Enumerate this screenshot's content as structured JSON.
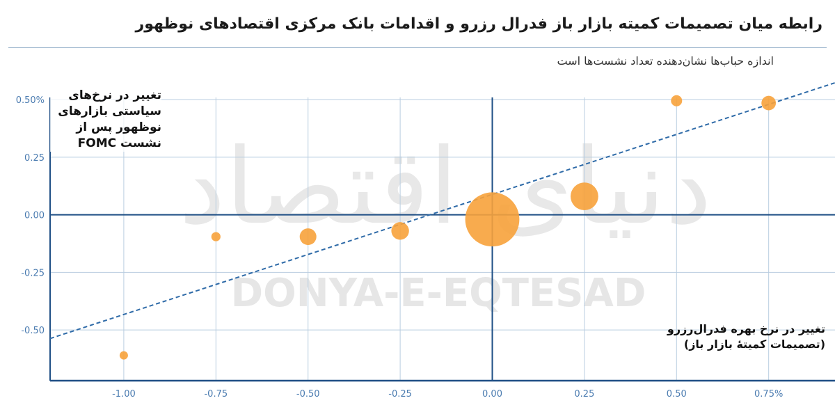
{
  "title": "رابطه میان تصمیمات کمیته بازار باز فدرال رزرو و اقدامات بانک مرکزی اقتصادهای نوظهور",
  "subtitle": "اندازه حباب‌ها نشان‌دهنده تعداد نشست‌ها است",
  "watermark": {
    "fa": "دنیای اقتصاد",
    "en": "DONYA-E-EQTESAD"
  },
  "colors": {
    "bubble": "#f7a23b",
    "trend": "#2f6ba8",
    "axis": "#1f4f85",
    "grid": "#b9cde0"
  },
  "chart_data": {
    "type": "scatter",
    "subtype": "bubble",
    "ylabel": "تغییر در نرخ‌های سیاستی بازارهای نوظهور پس از نشست FOMC",
    "xlabel_line1": "تغییر در نرخ بهره فدرال‌رزرو",
    "xlabel_line2": "(تصمیمات کمیتهٔ بازار باز)",
    "xlim": [
      -1.2,
      0.93
    ],
    "ylim": [
      -0.72,
      0.6
    ],
    "x_ticks": [
      -1.0,
      -0.75,
      -0.5,
      -0.25,
      0.0,
      0.25,
      0.5,
      0.75
    ],
    "x_tick_labels": [
      "-1.00",
      "-0.75",
      "-0.50",
      "-0.25",
      "0.00",
      "0.25",
      "0.50",
      "0.75%"
    ],
    "y_ticks": [
      0.5,
      0.25,
      0.0,
      -0.25,
      -0.5
    ],
    "y_tick_labels": [
      "0.50%",
      "0.25",
      "0.00",
      "-0.25",
      "-0.50"
    ],
    "grid": true,
    "points": [
      {
        "x": -1.0,
        "y": -0.61,
        "size": 1
      },
      {
        "x": -0.75,
        "y": -0.095,
        "size": 1.2
      },
      {
        "x": -0.5,
        "y": -0.095,
        "size": 4
      },
      {
        "x": -0.25,
        "y": -0.07,
        "size": 4.5
      },
      {
        "x": 0.0,
        "y": -0.02,
        "size": 42
      },
      {
        "x": 0.25,
        "y": 0.08,
        "size": 11
      },
      {
        "x": 0.5,
        "y": 0.495,
        "size": 1.8
      },
      {
        "x": 0.75,
        "y": 0.485,
        "size": 3
      }
    ],
    "trendline": {
      "x": [
        -1.2,
        0.93
      ],
      "y": [
        -0.537,
        0.573
      ],
      "style": "dashed"
    }
  }
}
